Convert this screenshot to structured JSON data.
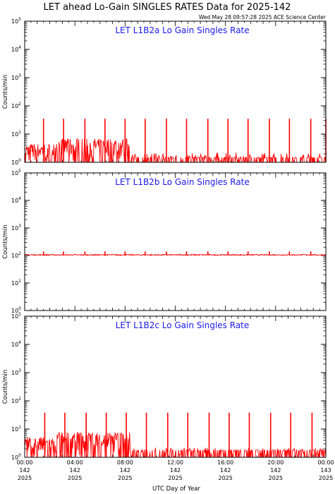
{
  "title": "LET ahead Lo-Gain SINGLES RATES Data for 2025-142",
  "timestamp": "Wed May 28 09:57:28 2025 ACE Science Center",
  "colors": {
    "data": "#ff0000",
    "panel_title": "#1a1ae6",
    "axes": "#000000"
  },
  "chart_data": [
    {
      "type": "line",
      "title": "LET L1B2a Lo Gain Singles Rate",
      "ylabel": "Counts/min",
      "yscale": "log",
      "ylim": [
        1,
        100000
      ],
      "xlim": [
        0,
        24
      ],
      "y_tick_labels": [
        {
          "base": "10",
          "exp": "0"
        },
        {
          "base": "10",
          "exp": "1"
        },
        {
          "base": "10",
          "exp": "2"
        },
        {
          "base": "10",
          "exp": "3"
        },
        {
          "base": "10",
          "exp": "4"
        },
        {
          "base": "10",
          "exp": "5"
        }
      ],
      "series": [
        {
          "baseline": 1.5,
          "busy_until_hour": 8.4,
          "busy_max": 7,
          "spike_value": 35,
          "spike_hours": [
            1.5,
            3.1,
            4.8,
            6.4,
            8.0,
            9.6,
            11.3,
            12.9,
            14.6,
            16.2,
            17.8,
            19.5,
            21.1,
            22.8,
            24.0
          ]
        }
      ]
    },
    {
      "type": "line",
      "title": "LET L1B2b Lo Gain Singles Rate",
      "ylabel": "Counts/min",
      "yscale": "log",
      "ylim": [
        1,
        100000
      ],
      "xlim": [
        0,
        24
      ],
      "y_tick_labels": [
        {
          "base": "10",
          "exp": "0"
        },
        {
          "base": "10",
          "exp": "1"
        },
        {
          "base": "10",
          "exp": "2"
        },
        {
          "base": "10",
          "exp": "3"
        },
        {
          "base": "10",
          "exp": "4"
        },
        {
          "base": "10",
          "exp": "5"
        }
      ],
      "series": [
        {
          "baseline": 105,
          "spike_value": 140,
          "spike_hours": [
            1.5,
            3.1,
            4.8,
            6.4,
            8.0,
            9.6,
            11.3,
            12.9,
            14.6,
            16.2,
            17.8,
            19.5,
            21.1,
            22.8
          ]
        }
      ]
    },
    {
      "type": "line",
      "title": "LET L1B2c Lo Gain Singles Rate",
      "ylabel": "Counts/min",
      "yscale": "log",
      "ylim": [
        1,
        100000
      ],
      "xlim": [
        0,
        24
      ],
      "y_tick_labels": [
        {
          "base": "10",
          "exp": "0"
        },
        {
          "base": "10",
          "exp": "1"
        },
        {
          "base": "10",
          "exp": "2"
        },
        {
          "base": "10",
          "exp": "3"
        },
        {
          "base": "10",
          "exp": "4"
        },
        {
          "base": "10",
          "exp": "5"
        }
      ],
      "series": [
        {
          "baseline": 1.8,
          "busy_until_hour": 8.4,
          "busy_max": 8,
          "spike_value": 38,
          "spike_hours": [
            1.6,
            3.2,
            4.9,
            6.5,
            8.1,
            9.7,
            11.4,
            13.0,
            14.7,
            16.3,
            17.9,
            19.6,
            21.2,
            22.9
          ]
        }
      ]
    }
  ],
  "x_axis": {
    "label": "UTC Day of Year",
    "ticks": [
      {
        "hour": 0,
        "time": "00:00",
        "doy": "142",
        "year": "2025"
      },
      {
        "hour": 4,
        "time": "04:00",
        "doy": "142",
        "year": "2025"
      },
      {
        "hour": 8,
        "time": "08:00",
        "doy": "142",
        "year": "2025"
      },
      {
        "hour": 12,
        "time": "12:00",
        "doy": "142",
        "year": "2025"
      },
      {
        "hour": 16,
        "time": "16:00",
        "doy": "142",
        "year": "2025"
      },
      {
        "hour": 20,
        "time": "20:00",
        "doy": "142",
        "year": "2025"
      },
      {
        "hour": 24,
        "time": "00:00",
        "doy": "143",
        "year": "2025"
      }
    ]
  }
}
